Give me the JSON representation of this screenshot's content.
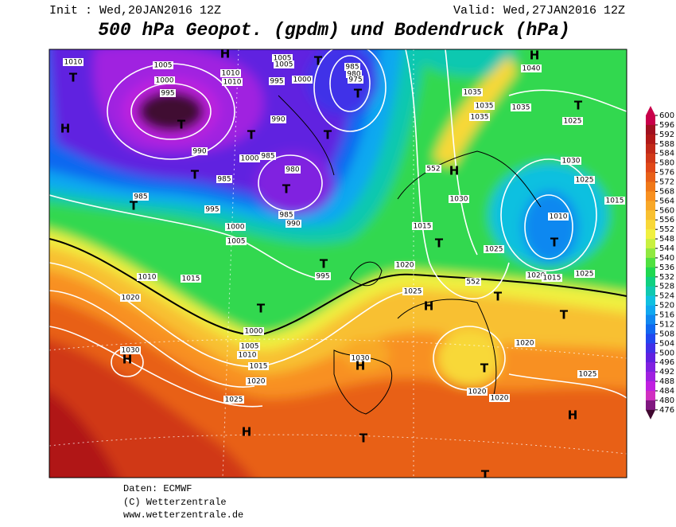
{
  "header": {
    "init": "Init : Wed,20JAN2016 12Z",
    "valid": "Valid: Wed,27JAN2016 12Z",
    "title": "500 hPa Geopot. (gpdm) und Bodendruck (hPa)"
  },
  "map": {
    "labels": [
      "1010",
      "T",
      "1005",
      "1000",
      "995",
      "H",
      "1010",
      "1010",
      "1005",
      "1005",
      "995",
      "1000",
      "T",
      "985",
      "980",
      "975",
      "T",
      "H",
      "1040",
      "1035",
      "1035",
      "1035",
      "1035",
      "T",
      "1025",
      "H",
      "T",
      "990",
      "T",
      "T",
      "990",
      "1000",
      "985",
      "T",
      "985",
      "980",
      "T",
      "552",
      "H",
      "1030",
      "1025",
      "985",
      "T",
      "995",
      "985",
      "990",
      "1030",
      "1015",
      "1010",
      "T",
      "1000",
      "1005",
      "1015",
      "T",
      "1025",
      "T",
      "1020",
      "995",
      "1010",
      "1015",
      "1020",
      "1015",
      "1025",
      "552",
      "1020",
      "1025",
      "T",
      "H",
      "T",
      "T",
      "1000",
      "1005",
      "1010",
      "1020",
      "1030",
      "H",
      "1015",
      "1030",
      "H",
      "T",
      "1025",
      "1020",
      "1020",
      "1020",
      "1025",
      "H",
      "H",
      "T",
      "T"
    ]
  },
  "legend": {
    "levels": [
      600,
      596,
      592,
      588,
      584,
      580,
      576,
      572,
      568,
      564,
      560,
      556,
      552,
      548,
      544,
      540,
      536,
      532,
      528,
      524,
      520,
      516,
      512,
      508,
      504,
      500,
      496,
      492,
      488,
      484,
      480,
      476
    ],
    "colors": [
      "#c8004a",
      "#a01020",
      "#b01818",
      "#c02818",
      "#d03818",
      "#e04818",
      "#e86018",
      "#f07818",
      "#f89020",
      "#f8a828",
      "#f8c030",
      "#f8d838",
      "#f0f040",
      "#c8f040",
      "#90e840",
      "#50e040",
      "#20d850",
      "#10d080",
      "#10c8b0",
      "#10c0e0",
      "#10a8f0",
      "#1088f0",
      "#1068f0",
      "#2048f0",
      "#4030e8",
      "#6020e0",
      "#8020e0",
      "#a020e0",
      "#c020e0",
      "#d030c0",
      "#801880",
      "#400830"
    ]
  },
  "footer": {
    "source": "Daten: ECMWF",
    "copyright": "(C) Wetterzentrale",
    "url": "www.wetterzentrale.de"
  }
}
